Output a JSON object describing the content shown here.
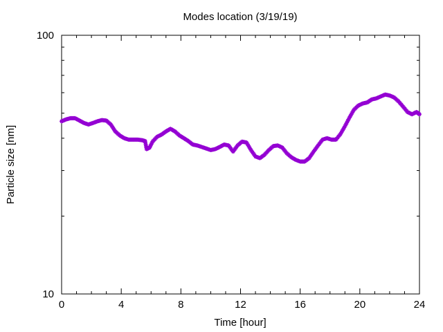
{
  "chart_data": {
    "type": "scatter",
    "title": "Modes location (3/19/19)",
    "xlabel": "Time [hour]",
    "ylabel": "Particle size [nm]",
    "xlim": [
      0,
      24
    ],
    "ylim": [
      10,
      100
    ],
    "y_scale": "log",
    "x_ticks": [
      0,
      4,
      8,
      12,
      16,
      20,
      24
    ],
    "x_tick_labels": [
      "0",
      "4",
      "8",
      "12",
      "16",
      "20",
      "24"
    ],
    "y_tick_labels": [
      "10",
      "100"
    ],
    "grid": false,
    "color": "#9400d3",
    "series": [
      {
        "name": "",
        "points": [
          [
            0.0,
            46.5
          ],
          [
            0.3,
            47.3
          ],
          [
            0.6,
            47.8
          ],
          [
            0.9,
            47.8
          ],
          [
            1.2,
            46.8
          ],
          [
            1.5,
            45.8
          ],
          [
            1.8,
            45.2
          ],
          [
            2.1,
            45.8
          ],
          [
            2.4,
            46.5
          ],
          [
            2.7,
            47.0
          ],
          [
            3.0,
            46.8
          ],
          [
            3.3,
            45.2
          ],
          [
            3.6,
            42.5
          ],
          [
            3.9,
            41.0
          ],
          [
            4.2,
            40.0
          ],
          [
            4.5,
            39.5
          ],
          [
            4.8,
            39.5
          ],
          [
            5.1,
            39.5
          ],
          [
            5.4,
            39.3
          ],
          [
            5.6,
            39.0
          ],
          [
            5.7,
            36.3
          ],
          [
            5.9,
            36.8
          ],
          [
            6.1,
            38.8
          ],
          [
            6.4,
            40.5
          ],
          [
            6.7,
            41.3
          ],
          [
            7.0,
            42.5
          ],
          [
            7.3,
            43.5
          ],
          [
            7.6,
            42.5
          ],
          [
            7.9,
            41.0
          ],
          [
            8.2,
            40.0
          ],
          [
            8.5,
            39.0
          ],
          [
            8.8,
            37.8
          ],
          [
            9.1,
            37.5
          ],
          [
            9.4,
            37.0
          ],
          [
            9.7,
            36.5
          ],
          [
            10.0,
            36.0
          ],
          [
            10.3,
            36.3
          ],
          [
            10.6,
            37.0
          ],
          [
            10.9,
            37.8
          ],
          [
            11.2,
            37.5
          ],
          [
            11.5,
            35.5
          ],
          [
            11.8,
            37.5
          ],
          [
            12.1,
            38.8
          ],
          [
            12.4,
            38.5
          ],
          [
            12.7,
            36.0
          ],
          [
            13.0,
            34.0
          ],
          [
            13.3,
            33.5
          ],
          [
            13.6,
            34.5
          ],
          [
            13.9,
            36.0
          ],
          [
            14.2,
            37.3
          ],
          [
            14.5,
            37.5
          ],
          [
            14.8,
            36.8
          ],
          [
            15.1,
            35.0
          ],
          [
            15.4,
            33.8
          ],
          [
            15.7,
            33.0
          ],
          [
            16.0,
            32.5
          ],
          [
            16.3,
            32.5
          ],
          [
            16.6,
            33.5
          ],
          [
            16.9,
            35.5
          ],
          [
            17.2,
            37.5
          ],
          [
            17.5,
            39.5
          ],
          [
            17.8,
            40.0
          ],
          [
            18.1,
            39.5
          ],
          [
            18.4,
            39.5
          ],
          [
            18.7,
            41.5
          ],
          [
            19.0,
            44.5
          ],
          [
            19.3,
            48.0
          ],
          [
            19.6,
            51.5
          ],
          [
            19.9,
            53.5
          ],
          [
            20.2,
            54.5
          ],
          [
            20.5,
            55.0
          ],
          [
            20.8,
            56.5
          ],
          [
            21.1,
            57.0
          ],
          [
            21.4,
            58.0
          ],
          [
            21.7,
            59.0
          ],
          [
            22.0,
            58.5
          ],
          [
            22.3,
            57.5
          ],
          [
            22.6,
            55.5
          ],
          [
            22.9,
            53.0
          ],
          [
            23.2,
            50.5
          ],
          [
            23.5,
            49.5
          ],
          [
            23.8,
            50.5
          ],
          [
            24.0,
            49.5
          ]
        ]
      }
    ]
  }
}
